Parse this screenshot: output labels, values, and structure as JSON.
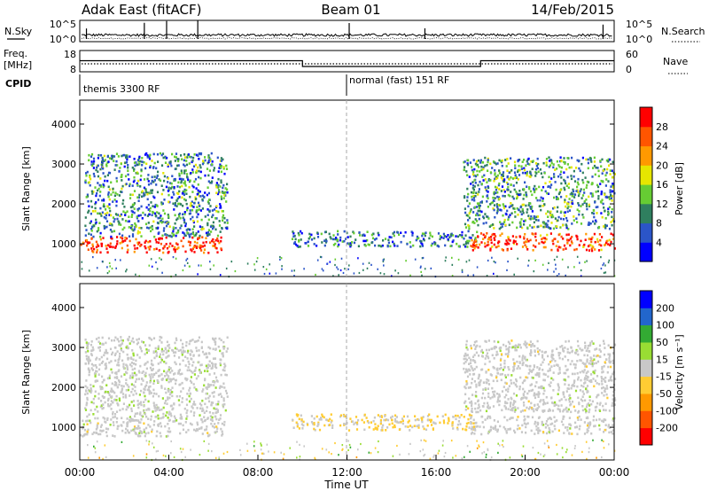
{
  "header": {
    "station_title": "Adak East (fitACF)",
    "beam_label": "Beam 01",
    "date_label": "14/Feb/2015"
  },
  "chart_data": [
    {
      "name": "noise-panel",
      "type": "line",
      "left_label": "N.Sky",
      "right_label": "N.Search",
      "yticks_left": [
        "10^5",
        "10^0"
      ],
      "yticks_right": [
        "10^5",
        "10^0"
      ],
      "y_scale": "log"
    },
    {
      "name": "frequency-nave-panel",
      "type": "line",
      "left_label_line1": "Freq.",
      "left_label_line2": "[MHz]",
      "right_label": "Nave",
      "yticks_left": [
        "18",
        "8"
      ],
      "yticks_right": [
        "60",
        "0"
      ],
      "cpid_label": "CPID",
      "cpid_segments": [
        {
          "label": "themis 3300 RF",
          "start_hour": 0.0
        },
        {
          "label": "normal (fast) 151 RF",
          "start_hour": 12.0
        }
      ],
      "freq_segments": [
        {
          "start_hour": 0.0,
          "end_hour": 10.0,
          "freq_mhz": 13.2
        },
        {
          "start_hour": 10.0,
          "end_hour": 18.0,
          "freq_mhz": 10.5
        },
        {
          "start_hour": 18.0,
          "end_hour": 24.0,
          "freq_mhz": 13.2
        }
      ]
    },
    {
      "name": "power-panel",
      "type": "heatmap",
      "ylabel": "Slant Range [km]",
      "yticks": [
        "1000",
        "2000",
        "3000",
        "4000"
      ],
      "y_range_km": [
        180,
        4600
      ],
      "colorbar_label": "Power [dB]",
      "colorbar_ticks": [
        "4",
        "8",
        "12",
        "16",
        "20",
        "24",
        "28"
      ],
      "colorbar_range": [
        0,
        30
      ],
      "colors": [
        "#0000ff",
        "#2b55c8",
        "#2f7f5f",
        "#66cc33",
        "#e6e600",
        "#ff9900",
        "#ff5500",
        "#ff0000"
      ],
      "regions": [
        {
          "x0": 0.0,
          "x1": 6.5,
          "r0": 800,
          "r1": 1200,
          "power": 27
        },
        {
          "x0": 0.2,
          "x1": 6.6,
          "r0": 1200,
          "r1": 3300,
          "power": 9
        },
        {
          "x0": 9.5,
          "x1": 17.8,
          "r0": 950,
          "r1": 1350,
          "power": 8
        },
        {
          "x0": 17.5,
          "x1": 24.0,
          "r0": 850,
          "r1": 1300,
          "power": 25
        },
        {
          "x0": 17.2,
          "x1": 24.0,
          "r0": 1400,
          "r1": 3200,
          "power": 10
        }
      ]
    },
    {
      "name": "velocity-panel",
      "type": "heatmap",
      "ylabel": "Slant Range [km]",
      "yticks": [
        "1000",
        "2000",
        "3000",
        "4000"
      ],
      "y_range_km": [
        180,
        4600
      ],
      "colorbar_label": "Velocity [m s⁻¹]",
      "colorbar_ticks": [
        "200",
        "100",
        "50",
        "15",
        "-15",
        "-50",
        "-100",
        "-200"
      ],
      "colorbar_range": [
        -250,
        250
      ],
      "colors": [
        "#ff0000",
        "#ff5500",
        "#ff9900",
        "#ffcc33",
        "#c8c8c8",
        "#99dd33",
        "#33aa33",
        "#2266cc",
        "#0000ff"
      ],
      "regions": [
        {
          "x0": 0.0,
          "x1": 6.5,
          "r0": 800,
          "r1": 1200,
          "velocity": 0
        },
        {
          "x0": 0.2,
          "x1": 6.6,
          "r0": 1200,
          "r1": 3300,
          "velocity": 5
        },
        {
          "x0": 9.5,
          "x1": 17.8,
          "r0": 950,
          "r1": 1350,
          "velocity": -30
        },
        {
          "x0": 17.5,
          "x1": 24.0,
          "r0": 850,
          "r1": 1300,
          "velocity": 0
        },
        {
          "x0": 17.2,
          "x1": 24.0,
          "r0": 1400,
          "r1": 3200,
          "velocity": 0
        }
      ]
    }
  ],
  "xaxis": {
    "label": "Time UT",
    "ticks": [
      "00:00",
      "04:00",
      "08:00",
      "12:00",
      "16:00",
      "20:00",
      "00:00"
    ],
    "range_hours": [
      0,
      24
    ]
  }
}
